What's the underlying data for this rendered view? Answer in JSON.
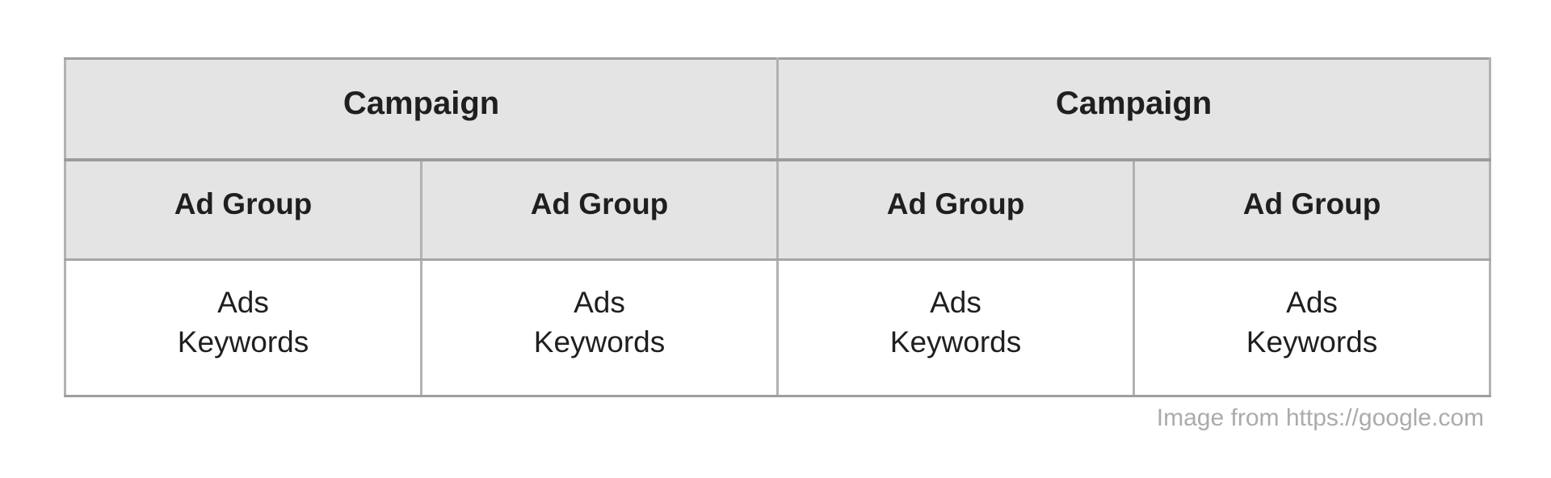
{
  "page": {
    "background_color": "#ffffff"
  },
  "structure_table": {
    "header_background": "#e4e4e4",
    "body_background": "#ffffff",
    "outer_border_color": "#9e9e9e",
    "inner_border_color": "#b2b2b2",
    "text_color": "#1f1f1f",
    "campaigns": [
      {
        "label": "Campaign"
      },
      {
        "label": "Campaign"
      }
    ],
    "ad_groups": [
      {
        "label": "Ad Group"
      },
      {
        "label": "Ad Group"
      },
      {
        "label": "Ad Group"
      },
      {
        "label": "Ad Group"
      }
    ],
    "cells": [
      {
        "line1": "Ads",
        "line2": "Keywords"
      },
      {
        "line1": "Ads",
        "line2": "Keywords"
      },
      {
        "line1": "Ads",
        "line2": "Keywords"
      },
      {
        "line1": "Ads",
        "line2": "Keywords"
      }
    ]
  },
  "caption": {
    "text": "Image from https://google.com",
    "color": "#ababab"
  }
}
